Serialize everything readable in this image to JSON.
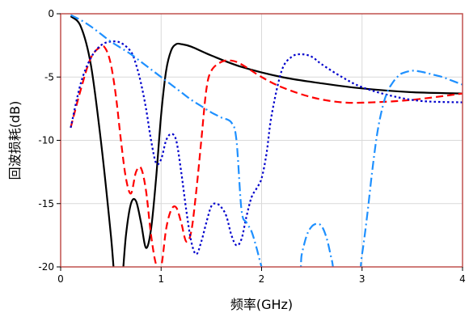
{
  "chart_data": {
    "type": "line",
    "title": "",
    "xlabel": "频率(GHz)",
    "ylabel": "回波损耗(dB)",
    "xlim": [
      0,
      4
    ],
    "ylim": [
      -20,
      0
    ],
    "xticks": [
      0,
      1,
      2,
      3,
      4
    ],
    "yticks": [
      0,
      -5,
      -10,
      -15,
      -20
    ],
    "xtick_labels": [
      "0",
      "1",
      "2",
      "3",
      "4"
    ],
    "ytick_labels": [
      "0",
      "-5",
      "-10",
      "-15",
      "-20"
    ],
    "grid": true,
    "legend": "none",
    "frame_color": "#c0504d",
    "series": [
      {
        "color": "#000000",
        "dash": "solid",
        "x": [
          0.1,
          0.2,
          0.3,
          0.4,
          0.5,
          0.55,
          0.6,
          0.65,
          0.7,
          0.75,
          0.8,
          0.85,
          0.9,
          0.95,
          1.0,
          1.05,
          1.1,
          1.15,
          1.2,
          1.3,
          1.5,
          1.8,
          2.2,
          2.6,
          3.0,
          3.5,
          4.0
        ],
        "y": [
          -0.2,
          -1.0,
          -4.0,
          -10.0,
          -17.5,
          -22,
          -22,
          -17.5,
          -15.0,
          -14.8,
          -16.5,
          -18.5,
          -17.0,
          -13.0,
          -8.0,
          -4.5,
          -2.9,
          -2.4,
          -2.4,
          -2.6,
          -3.3,
          -4.2,
          -5.0,
          -5.5,
          -5.9,
          -6.2,
          -6.3
        ]
      },
      {
        "color": "#ff0000",
        "dash": "long",
        "x": [
          0.1,
          0.2,
          0.3,
          0.4,
          0.45,
          0.5,
          0.55,
          0.6,
          0.65,
          0.7,
          0.75,
          0.8,
          0.85,
          0.9,
          0.95,
          1.0,
          1.05,
          1.1,
          1.15,
          1.2,
          1.25,
          1.3,
          1.35,
          1.4,
          1.45,
          1.5,
          1.6,
          1.7,
          1.8,
          2.0,
          2.2,
          2.5,
          2.8,
          3.1,
          3.5,
          4.0
        ],
        "y": [
          -9.0,
          -6.0,
          -3.5,
          -2.6,
          -2.8,
          -4.0,
          -6.5,
          -10.0,
          -13.0,
          -14.2,
          -12.5,
          -12.2,
          -14.0,
          -17.5,
          -19.8,
          -20.0,
          -17.0,
          -15.5,
          -15.3,
          -16.5,
          -18.0,
          -17.2,
          -14.0,
          -10.0,
          -6.0,
          -4.5,
          -3.8,
          -3.7,
          -4.0,
          -5.0,
          -5.8,
          -6.6,
          -7.0,
          -7.0,
          -6.8,
          -6.3
        ]
      },
      {
        "color": "#0000cc",
        "dash": "dot",
        "x": [
          0.1,
          0.2,
          0.3,
          0.4,
          0.5,
          0.6,
          0.7,
          0.75,
          0.8,
          0.85,
          0.9,
          0.95,
          1.0,
          1.05,
          1.1,
          1.15,
          1.2,
          1.25,
          1.3,
          1.35,
          1.4,
          1.45,
          1.5,
          1.55,
          1.6,
          1.65,
          1.7,
          1.75,
          1.8,
          1.85,
          1.9,
          1.95,
          2.0,
          2.05,
          2.1,
          2.2,
          2.3,
          2.4,
          2.5,
          2.6,
          2.8,
          3.0,
          3.3,
          3.6,
          4.0
        ],
        "y": [
          -9.0,
          -5.5,
          -3.5,
          -2.5,
          -2.2,
          -2.3,
          -3.0,
          -4.0,
          -5.5,
          -7.5,
          -10.0,
          -11.8,
          -11.5,
          -10.0,
          -9.5,
          -10.0,
          -12.5,
          -15.5,
          -18.0,
          -19.0,
          -18.0,
          -16.5,
          -15.2,
          -15.0,
          -15.3,
          -16.0,
          -17.5,
          -18.3,
          -17.8,
          -16.0,
          -14.5,
          -13.8,
          -13.0,
          -11.0,
          -8.0,
          -4.5,
          -3.4,
          -3.2,
          -3.4,
          -4.0,
          -5.0,
          -5.8,
          -6.5,
          -6.9,
          -7.0
        ]
      },
      {
        "color": "#1e90ff",
        "dash": "dashdot",
        "x": [
          0.1,
          0.2,
          0.3,
          0.4,
          0.5,
          0.6,
          0.7,
          0.8,
          0.9,
          1.0,
          1.1,
          1.2,
          1.3,
          1.4,
          1.5,
          1.6,
          1.7,
          1.75,
          1.8,
          1.85,
          1.9,
          1.95,
          2.0,
          2.05,
          2.35,
          2.4,
          2.45,
          2.5,
          2.55,
          2.6,
          2.65,
          2.7,
          2.75,
          2.95,
          3.0,
          3.05,
          3.1,
          3.15,
          3.2,
          3.25,
          3.3,
          3.35,
          3.4,
          3.5,
          3.6,
          3.7,
          3.8,
          3.9,
          4.0
        ],
        "y": [
          -0.1,
          -0.5,
          -1.0,
          -1.6,
          -2.2,
          -2.7,
          -3.2,
          -3.8,
          -4.4,
          -5.0,
          -5.6,
          -6.2,
          -6.8,
          -7.3,
          -7.8,
          -8.2,
          -8.6,
          -10.0,
          -15.5,
          -16.5,
          -17.2,
          -18.5,
          -20.0,
          -21.0,
          -21.0,
          -19.0,
          -17.5,
          -16.8,
          -16.6,
          -16.8,
          -17.8,
          -19.5,
          -21.0,
          -21.0,
          -19.0,
          -16.0,
          -12.5,
          -9.5,
          -7.5,
          -6.2,
          -5.5,
          -5.0,
          -4.7,
          -4.5,
          -4.6,
          -4.8,
          -5.0,
          -5.3,
          -5.6
        ]
      }
    ]
  }
}
